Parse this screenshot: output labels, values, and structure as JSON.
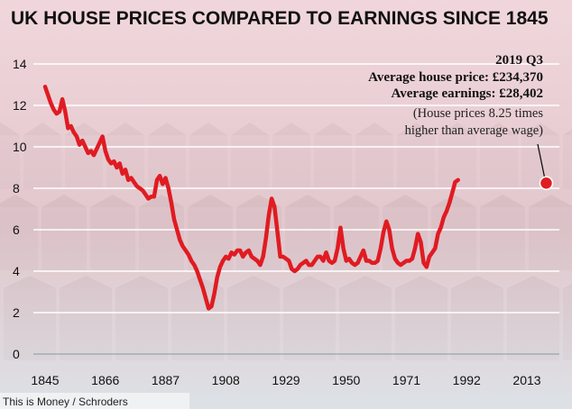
{
  "header": {
    "title": "UK HOUSE PRICES COMPARED TO EARNINGS SINCE 1845"
  },
  "source": "This is Money / Schroders",
  "annotation": {
    "period": "2019 Q3",
    "house_price": "Average house price: £234,370",
    "earnings": "Average earnings: £28,402",
    "note_line1": "(House prices 8.25 times",
    "note_line2": "higher than average wage)"
  },
  "colors": {
    "line": "#e01b22",
    "band_top": "#f1d2d5",
    "band_bottom": "#dde3e8",
    "grid": "#ffffff",
    "background": "#c9d4dc"
  },
  "chart_data": {
    "type": "line",
    "title": "UK HOUSE PRICES COMPARED TO EARNINGS SINCE 1845",
    "xlabel": "",
    "ylabel": "",
    "xlim": [
      1845,
      2020
    ],
    "ylim": [
      0,
      14
    ],
    "x_ticks": [
      1845,
      1866,
      1887,
      1908,
      1929,
      1950,
      1971,
      1992,
      2013
    ],
    "y_ticks": [
      0,
      2,
      4,
      6,
      8,
      10,
      12,
      14
    ],
    "grid": true,
    "legend": "none",
    "series": [
      {
        "points": [
          [
            1845,
            12.9
          ],
          [
            1846,
            12.5
          ],
          [
            1847,
            12.1
          ],
          [
            1848,
            11.8
          ],
          [
            1849,
            11.6
          ],
          [
            1850,
            11.7
          ],
          [
            1851,
            12.3
          ],
          [
            1852,
            11.7
          ],
          [
            1853,
            10.9
          ],
          [
            1854,
            11.0
          ],
          [
            1855,
            10.7
          ],
          [
            1856,
            10.5
          ],
          [
            1857,
            10.1
          ],
          [
            1858,
            10.3
          ],
          [
            1859,
            10.0
          ],
          [
            1860,
            9.7
          ],
          [
            1861,
            9.8
          ],
          [
            1862,
            9.6
          ],
          [
            1863,
            9.9
          ],
          [
            1864,
            10.2
          ],
          [
            1865,
            10.5
          ],
          [
            1866,
            9.8
          ],
          [
            1867,
            9.4
          ],
          [
            1868,
            9.2
          ],
          [
            1869,
            9.3
          ],
          [
            1870,
            9.0
          ],
          [
            1871,
            9.2
          ],
          [
            1872,
            8.7
          ],
          [
            1873,
            8.9
          ],
          [
            1874,
            8.4
          ],
          [
            1875,
            8.5
          ],
          [
            1876,
            8.3
          ],
          [
            1877,
            8.1
          ],
          [
            1878,
            8.0
          ],
          [
            1879,
            7.9
          ],
          [
            1880,
            7.7
          ],
          [
            1881,
            7.5
          ],
          [
            1882,
            7.6
          ],
          [
            1883,
            7.6
          ],
          [
            1884,
            8.4
          ],
          [
            1885,
            8.6
          ],
          [
            1886,
            8.2
          ],
          [
            1887,
            8.5
          ],
          [
            1888,
            8.0
          ],
          [
            1889,
            7.3
          ],
          [
            1890,
            6.5
          ],
          [
            1891,
            6.0
          ],
          [
            1892,
            5.5
          ],
          [
            1893,
            5.2
          ],
          [
            1894,
            5.0
          ],
          [
            1895,
            4.8
          ],
          [
            1896,
            4.5
          ],
          [
            1897,
            4.3
          ],
          [
            1898,
            4.0
          ],
          [
            1899,
            3.6
          ],
          [
            1900,
            3.2
          ],
          [
            1901,
            2.7
          ],
          [
            1902,
            2.2
          ],
          [
            1903,
            2.3
          ],
          [
            1904,
            2.9
          ],
          [
            1905,
            3.7
          ],
          [
            1906,
            4.2
          ],
          [
            1907,
            4.5
          ],
          [
            1908,
            4.7
          ],
          [
            1909,
            4.6
          ],
          [
            1910,
            4.9
          ],
          [
            1911,
            4.8
          ],
          [
            1912,
            5.0
          ],
          [
            1913,
            5.0
          ],
          [
            1914,
            4.7
          ],
          [
            1915,
            4.9
          ],
          [
            1916,
            5.0
          ],
          [
            1917,
            4.7
          ],
          [
            1918,
            4.6
          ],
          [
            1919,
            4.5
          ],
          [
            1920,
            4.3
          ],
          [
            1921,
            4.7
          ],
          [
            1922,
            5.6
          ],
          [
            1923,
            6.7
          ],
          [
            1924,
            7.5
          ],
          [
            1925,
            7.1
          ],
          [
            1926,
            5.9
          ],
          [
            1927,
            4.7
          ],
          [
            1928,
            4.7
          ],
          [
            1929,
            4.6
          ],
          [
            1930,
            4.5
          ],
          [
            1931,
            4.1
          ],
          [
            1932,
            4.0
          ],
          [
            1933,
            4.1
          ],
          [
            1934,
            4.3
          ],
          [
            1935,
            4.4
          ],
          [
            1936,
            4.5
          ],
          [
            1937,
            4.3
          ],
          [
            1938,
            4.3
          ],
          [
            1939,
            4.5
          ],
          [
            1940,
            4.7
          ],
          [
            1941,
            4.7
          ],
          [
            1942,
            4.5
          ],
          [
            1943,
            4.9
          ],
          [
            1944,
            4.5
          ],
          [
            1945,
            4.4
          ],
          [
            1946,
            4.5
          ],
          [
            1947,
            5.1
          ],
          [
            1948,
            6.1
          ],
          [
            1949,
            5.1
          ],
          [
            1950,
            4.5
          ],
          [
            1951,
            4.6
          ],
          [
            1952,
            4.4
          ],
          [
            1953,
            4.3
          ],
          [
            1954,
            4.4
          ],
          [
            1955,
            4.7
          ],
          [
            1956,
            5.0
          ],
          [
            1957,
            4.5
          ],
          [
            1958,
            4.5
          ],
          [
            1959,
            4.4
          ],
          [
            1960,
            4.4
          ],
          [
            1961,
            4.5
          ],
          [
            1962,
            5.1
          ],
          [
            1963,
            5.9
          ],
          [
            1964,
            6.4
          ],
          [
            1965,
            6.0
          ],
          [
            1966,
            5.1
          ],
          [
            1967,
            4.6
          ],
          [
            1968,
            4.4
          ],
          [
            1969,
            4.3
          ],
          [
            1970,
            4.4
          ],
          [
            1971,
            4.5
          ],
          [
            1972,
            4.5
          ],
          [
            1973,
            4.6
          ],
          [
            1974,
            5.1
          ],
          [
            1975,
            5.8
          ],
          [
            1976,
            5.4
          ],
          [
            1977,
            4.4
          ],
          [
            1978,
            4.2
          ],
          [
            1979,
            4.7
          ],
          [
            1980,
            4.9
          ],
          [
            1981,
            5.1
          ],
          [
            1982,
            5.8
          ],
          [
            1983,
            6.1
          ],
          [
            1984,
            6.6
          ],
          [
            1985,
            6.9
          ],
          [
            1986,
            7.3
          ],
          [
            1987,
            7.8
          ],
          [
            1988,
            8.3
          ],
          [
            1989,
            8.4
          ]
        ]
      }
    ],
    "endpoint": {
      "x": 2019.75,
      "y": 8.25,
      "label": "2019 Q3"
    }
  }
}
